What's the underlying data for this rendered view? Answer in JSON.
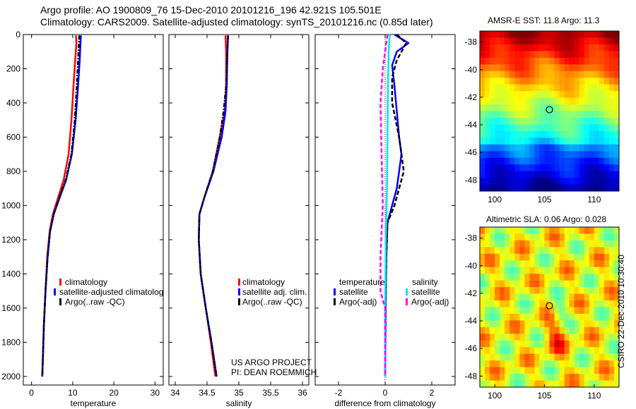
{
  "header": {
    "line1": "Argo profile: AO 1900809_76 15-Dec-2010 20101216_196 42.921S 105.501E",
    "line2": "Climatology: CARS2009. Satellite-adjusted climatology: synTS_20101216.nc (0.85d later)"
  },
  "credits": {
    "project": "US ARGO PROJECT",
    "pi": "PI: DEAN ROEMMICH",
    "stamp": "CSIRO 22-Dec-2010 10:30:40"
  },
  "colors": {
    "climatology": "#ff0000",
    "satellite": "#0000ff",
    "argo": "#000000",
    "sat_salt": "#00e5ee",
    "argo_adj_salt": "#ff00ff"
  },
  "chart_data": [
    {
      "type": "line",
      "xlabel": "temperature",
      "xlim": [
        -2,
        32
      ],
      "ylim": [
        2050,
        0
      ],
      "xticks": [
        0,
        10,
        20,
        30
      ],
      "yticks": [
        0,
        200,
        400,
        600,
        800,
        1000,
        1200,
        1400,
        1600,
        1800,
        2000
      ],
      "legend": [
        "climatology",
        "satellite-adjusted climatolog",
        "Argo(..raw -QC)"
      ],
      "series": [
        {
          "name": "climatology",
          "color": "#ff0000",
          "style": "solid",
          "points": [
            [
              10.8,
              5
            ],
            [
              10.9,
              50
            ],
            [
              10.6,
              150
            ],
            [
              10.2,
              300
            ],
            [
              9.7,
              500
            ],
            [
              9.0,
              700
            ],
            [
              7.8,
              850
            ],
            [
              6.5,
              950
            ],
            [
              5.2,
              1050
            ],
            [
              4.4,
              1150
            ],
            [
              3.8,
              1300
            ],
            [
              3.4,
              1500
            ],
            [
              3.0,
              1700
            ],
            [
              2.8,
              1850
            ],
            [
              2.6,
              2000
            ]
          ]
        },
        {
          "name": "satellite-adjusted climatolog",
          "color": "#0000ff",
          "style": "solid",
          "points": [
            [
              12.0,
              5
            ],
            [
              11.9,
              50
            ],
            [
              11.7,
              150
            ],
            [
              11.3,
              300
            ],
            [
              10.7,
              500
            ],
            [
              9.8,
              700
            ],
            [
              8.4,
              850
            ],
            [
              6.9,
              950
            ],
            [
              5.4,
              1050
            ],
            [
              4.5,
              1150
            ],
            [
              3.9,
              1300
            ],
            [
              3.4,
              1500
            ],
            [
              3.0,
              1700
            ],
            [
              2.8,
              1850
            ],
            [
              2.6,
              2000
            ]
          ]
        },
        {
          "name": "Argo(..raw -QC)",
          "color": "#000000",
          "style": "dashdot",
          "points": [
            [
              11.6,
              5
            ],
            [
              11.5,
              50
            ],
            [
              11.3,
              150
            ],
            [
              11.0,
              300
            ],
            [
              10.5,
              500
            ],
            [
              9.7,
              700
            ],
            [
              8.3,
              850
            ],
            [
              6.8,
              950
            ],
            [
              5.4,
              1050
            ],
            [
              4.5,
              1150
            ],
            [
              3.9,
              1300
            ],
            [
              3.4,
              1500
            ],
            [
              3.0,
              1700
            ],
            [
              2.8,
              1850
            ],
            [
              2.6,
              2000
            ]
          ]
        }
      ]
    },
    {
      "type": "line",
      "xlabel": "salinity",
      "xlim": [
        33.9,
        36.1
      ],
      "ylim": [
        2050,
        0
      ],
      "xticks": [
        34,
        34.5,
        35,
        35.5,
        36
      ],
      "yticks": [
        0,
        200,
        400,
        600,
        800,
        1000,
        1200,
        1400,
        1600,
        1800,
        2000
      ],
      "legend": [
        "climatology",
        "satellite adj. clim.",
        "Argo(..raw -QC)"
      ],
      "series": [
        {
          "name": "climatology",
          "color": "#ff0000",
          "style": "solid",
          "points": [
            [
              34.79,
              5
            ],
            [
              34.8,
              100
            ],
            [
              34.8,
              300
            ],
            [
              34.78,
              450
            ],
            [
              34.7,
              600
            ],
            [
              34.59,
              800
            ],
            [
              34.46,
              950
            ],
            [
              34.38,
              1050
            ],
            [
              34.37,
              1200
            ],
            [
              34.4,
              1400
            ],
            [
              34.48,
              1600
            ],
            [
              34.56,
              1800
            ],
            [
              34.63,
              2000
            ]
          ]
        },
        {
          "name": "satellite adj. clim.",
          "color": "#0000ff",
          "style": "solid",
          "points": [
            [
              34.83,
              5
            ],
            [
              34.82,
              100
            ],
            [
              34.81,
              300
            ],
            [
              34.79,
              450
            ],
            [
              34.73,
              600
            ],
            [
              34.6,
              800
            ],
            [
              34.46,
              950
            ],
            [
              34.38,
              1050
            ],
            [
              34.37,
              1200
            ],
            [
              34.4,
              1400
            ],
            [
              34.48,
              1600
            ],
            [
              34.57,
              1800
            ],
            [
              34.65,
              2000
            ]
          ]
        },
        {
          "name": "Argo(..raw -QC)",
          "color": "#000000",
          "style": "dashdot",
          "points": [
            [
              34.83,
              5
            ],
            [
              34.82,
              100
            ],
            [
              34.8,
              300
            ],
            [
              34.76,
              450
            ],
            [
              34.7,
              600
            ],
            [
              34.59,
              800
            ],
            [
              34.46,
              950
            ],
            [
              34.38,
              1050
            ],
            [
              34.37,
              1200
            ],
            [
              34.4,
              1400
            ],
            [
              34.48,
              1600
            ],
            [
              34.57,
              1800
            ],
            [
              34.65,
              2000
            ]
          ]
        }
      ]
    },
    {
      "type": "line",
      "xlabel": "difference from climatology",
      "xlim": [
        -3,
        3
      ],
      "ylim": [
        2050,
        0
      ],
      "xticks": [
        -2,
        0,
        2
      ],
      "yticks": [
        0,
        200,
        400,
        600,
        800,
        1000,
        1200,
        1400,
        1600,
        1800,
        2000
      ],
      "legend_groups": [
        "temperature",
        "salinity"
      ],
      "legend": [
        "satellite",
        "Argo(-adj)",
        "satellite",
        "Argo(-adj)"
      ],
      "series": [
        {
          "name": "satellite",
          "group": "temperature",
          "color": "#0000ff",
          "style": "solid",
          "points": [
            [
              0.4,
              0
            ],
            [
              1.0,
              50
            ],
            [
              0.5,
              100
            ],
            [
              0.3,
              180
            ],
            [
              0.4,
              300
            ],
            [
              0.5,
              450
            ],
            [
              0.6,
              600
            ],
            [
              0.7,
              700
            ],
            [
              0.6,
              800
            ],
            [
              0.5,
              900
            ],
            [
              0.3,
              1000
            ],
            [
              0.1,
              1100
            ],
            [
              0.05,
              1300
            ],
            [
              0.02,
              1600
            ],
            [
              0.0,
              2000
            ]
          ]
        },
        {
          "name": "Argo(-adj)",
          "group": "temperature",
          "color": "#000000",
          "style": "dashed",
          "points": [
            [
              0.5,
              0
            ],
            [
              0.9,
              50
            ],
            [
              0.5,
              150
            ],
            [
              0.3,
              250
            ],
            [
              0.3,
              400
            ],
            [
              0.6,
              600
            ],
            [
              0.8,
              800
            ],
            [
              0.6,
              900
            ],
            [
              0.4,
              1000
            ],
            [
              0.1,
              1100
            ],
            [
              0.05,
              1300
            ],
            [
              0.02,
              1600
            ],
            [
              0.0,
              2000
            ]
          ]
        },
        {
          "name": "satellite",
          "group": "salinity",
          "color": "#00e5ee",
          "style": "solid",
          "points": [
            [
              0.2,
              0
            ],
            [
              0.15,
              100
            ],
            [
              0.12,
              300
            ],
            [
              0.1,
              600
            ],
            [
              0.08,
              900
            ],
            [
              0.03,
              1200
            ],
            [
              0.0,
              1600
            ],
            [
              0.0,
              2000
            ]
          ]
        },
        {
          "name": "Argo(-adj)",
          "group": "salinity",
          "color": "#ff00ff",
          "style": "dashed",
          "points": [
            [
              0.1,
              0
            ],
            [
              -0.1,
              200
            ],
            [
              -0.2,
              400
            ],
            [
              -0.15,
              700
            ],
            [
              -0.1,
              1000
            ],
            [
              -0.2,
              1300
            ],
            [
              -0.2,
              1500
            ],
            [
              0.0,
              1600
            ],
            [
              0.0,
              2000
            ]
          ]
        }
      ]
    },
    {
      "type": "heatmap",
      "title": "AMSR-E SST: 11.8 Argo: 11.3",
      "xlim": [
        98.5,
        112.5
      ],
      "ylim": [
        -48.8,
        -37.2
      ],
      "xticks": [
        100,
        105,
        110
      ],
      "yticks": [
        -38,
        -40,
        -42,
        -44,
        -46,
        -48
      ],
      "marker": {
        "lon": 105.5,
        "lat": -42.9
      }
    },
    {
      "type": "heatmap",
      "title": "Altimetric SLA: 0.06 Argo: 0.028",
      "xlim": [
        98.5,
        112.5
      ],
      "ylim": [
        -48.8,
        -37.2
      ],
      "xticks": [
        100,
        105,
        110
      ],
      "yticks": [
        -38,
        -40,
        -42,
        -44,
        -46,
        -48
      ],
      "marker": {
        "lon": 105.5,
        "lat": -42.9
      }
    }
  ]
}
